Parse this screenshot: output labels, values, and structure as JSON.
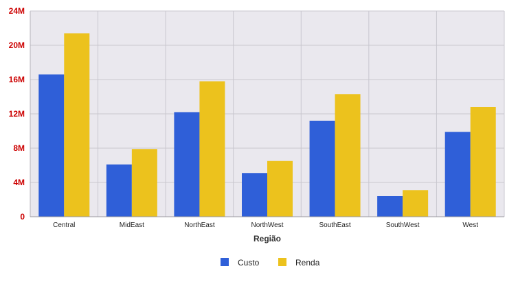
{
  "chart_data": {
    "type": "bar",
    "categories": [
      "Central",
      "MidEast",
      "NorthEast",
      "NorthWest",
      "SouthEast",
      "SouthWest",
      "West"
    ],
    "series": [
      {
        "name": "Custo",
        "color": "#2f5fd8",
        "values": [
          16.6,
          6.1,
          12.2,
          5.1,
          11.2,
          2.4,
          9.9
        ]
      },
      {
        "name": "Renda",
        "color": "#ecc21d",
        "values": [
          21.4,
          7.9,
          15.8,
          6.5,
          14.3,
          3.1,
          12.8
        ]
      }
    ],
    "title": "",
    "xlabel": "Região",
    "ylabel": "",
    "ylim": [
      0,
      24
    ],
    "y_unit": "M",
    "y_ticks": [
      0,
      4,
      8,
      12,
      16,
      20,
      24
    ],
    "y_tick_labels": [
      "0",
      "4M",
      "8M",
      "12M",
      "16M",
      "20M",
      "24M"
    ],
    "y_tick_label_color": "#cc0000",
    "plot_background": "#eae8ee",
    "grid": true,
    "legend_position": "bottom"
  }
}
